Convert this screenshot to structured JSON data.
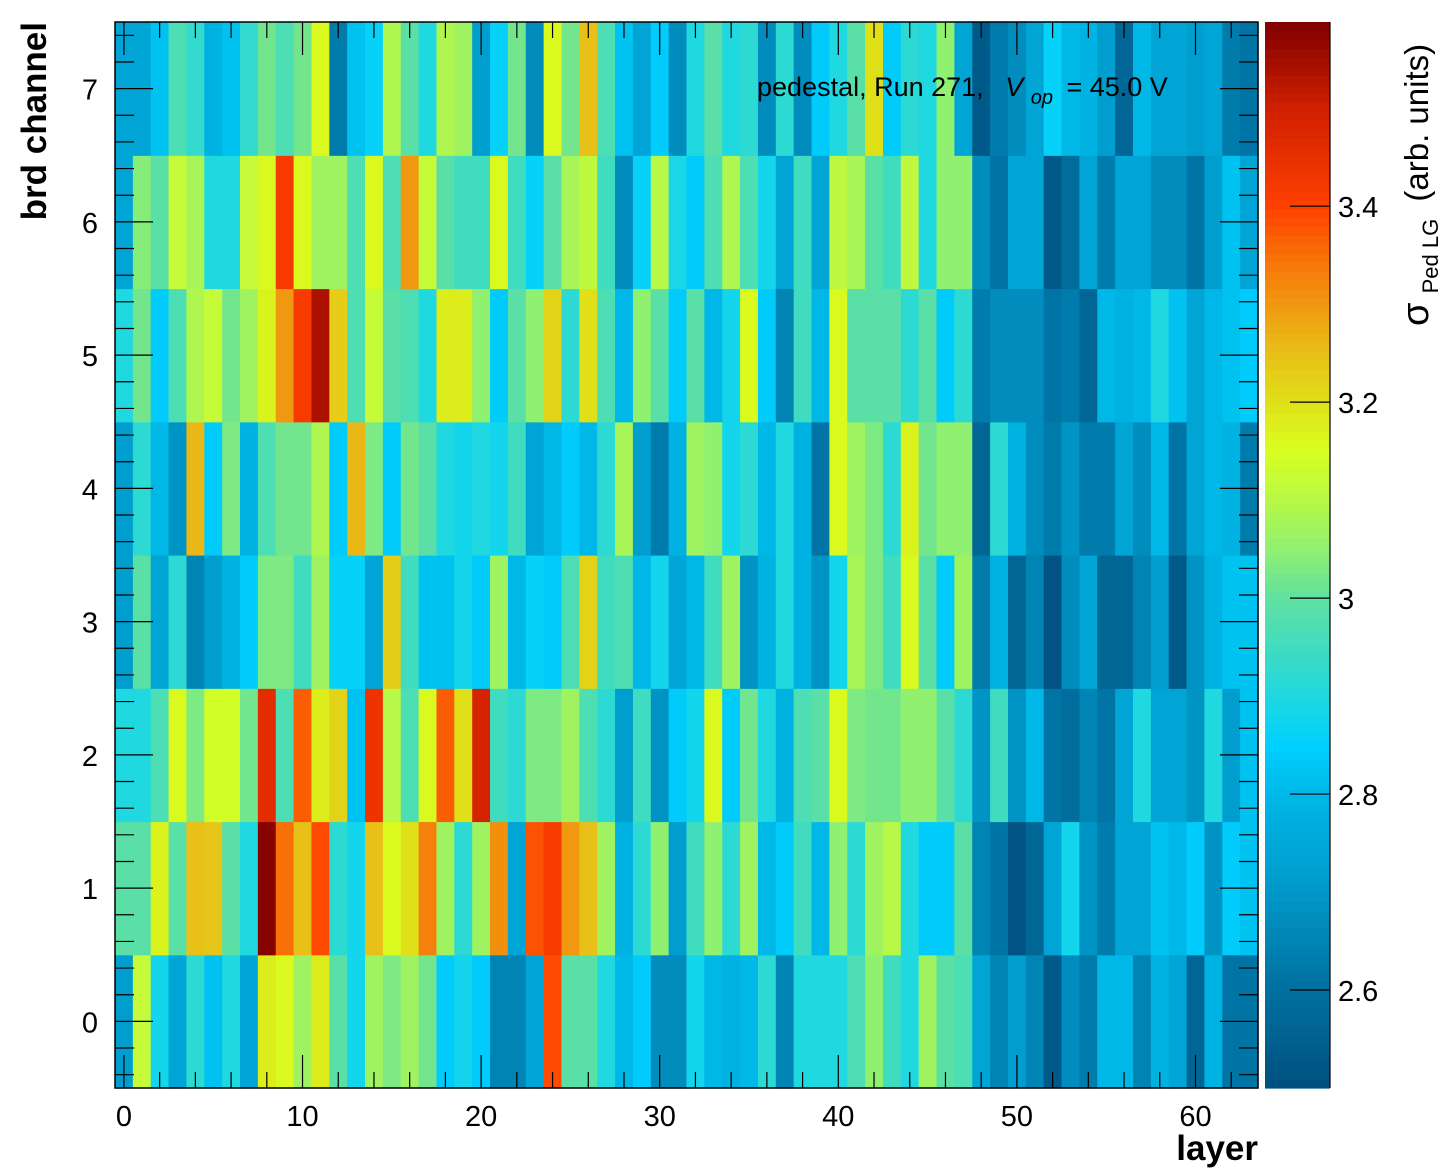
{
  "chart_data": {
    "type": "heatmap",
    "title": "",
    "annotation": {
      "prefix": "pedestal, Run 271,",
      "var_main": "V",
      "var_sub": "op",
      "suffix": "= 45.0 V"
    },
    "xlabel": "layer",
    "ylabel": "brd channel",
    "zlabel": {
      "symbol": "σ",
      "sub": "Ped LG",
      "rest": "(arb. units)"
    },
    "xlim": [
      -0.5,
      63.5
    ],
    "ylim": [
      -0.5,
      7.5
    ],
    "zlim": [
      2.5,
      3.588
    ],
    "x_ticks": [
      0,
      10,
      20,
      30,
      40,
      50,
      60
    ],
    "x_tick_labels": [
      "0",
      "10",
      "20",
      "30",
      "40",
      "50",
      "60"
    ],
    "y_ticks": [
      0,
      1,
      2,
      3,
      4,
      5,
      6,
      7
    ],
    "y_tick_labels": [
      "0",
      "1",
      "2",
      "3",
      "4",
      "5",
      "6",
      "7"
    ],
    "z_ticks": [
      2.6,
      2.8,
      3.0,
      3.2,
      3.4
    ],
    "z_tick_labels": [
      "2.6",
      "2.8",
      "3",
      "3.2",
      "3.4"
    ],
    "colormap": "rainbow (dark blue → cyan → green → yellow → red → dark red)",
    "grid": false,
    "legend": "colorbar-right",
    "x": "layer index 0..63",
    "y": "brd channel 0..7",
    "values": [
      [
        2.72,
        3.12,
        2.88,
        2.74,
        2.92,
        2.82,
        2.9,
        2.74,
        3.18,
        3.16,
        3.07,
        3.18,
        2.99,
        2.88,
        3.07,
        3.03,
        3.07,
        3.02,
        2.84,
        2.88,
        2.84,
        2.65,
        2.65,
        2.74,
        3.39,
        2.99,
        2.99,
        2.9,
        2.8,
        2.84,
        2.67,
        2.67,
        2.88,
        2.8,
        2.78,
        2.8,
        2.92,
        2.65,
        2.9,
        2.9,
        2.9,
        2.97,
        3.05,
        2.95,
        2.9,
        3.07,
        2.99,
        2.97,
        2.74,
        2.65,
        2.72,
        2.65,
        2.53,
        2.67,
        2.63,
        2.8,
        2.8,
        2.65,
        2.78,
        2.74,
        2.57,
        2.78,
        2.61,
        2.61
      ],
      [
        2.99,
        2.99,
        3.17,
        2.99,
        3.25,
        3.24,
        2.99,
        2.9,
        3.58,
        3.35,
        3.25,
        3.39,
        2.92,
        2.88,
        3.25,
        3.16,
        3.2,
        3.33,
        3.07,
        2.92,
        3.07,
        3.31,
        2.74,
        3.38,
        3.42,
        3.3,
        3.25,
        3.07,
        2.78,
        2.92,
        3.05,
        2.72,
        2.95,
        3.05,
        2.92,
        3.07,
        2.8,
        2.84,
        2.95,
        2.8,
        3.05,
        2.92,
        3.07,
        3.1,
        2.9,
        2.84,
        2.84,
        2.99,
        2.65,
        2.61,
        2.51,
        2.57,
        2.74,
        2.88,
        2.69,
        2.63,
        2.74,
        2.74,
        2.82,
        2.8,
        2.84,
        2.69,
        2.84,
        2.82
      ],
      [
        2.9,
        2.9,
        2.97,
        3.16,
        3.03,
        3.14,
        3.14,
        3.02,
        3.46,
        2.97,
        3.37,
        3.18,
        3.22,
        2.82,
        3.44,
        3.1,
        2.97,
        3.16,
        3.37,
        3.2,
        3.49,
        2.95,
        2.92,
        3.03,
        3.03,
        3.07,
        2.97,
        2.92,
        2.72,
        2.95,
        2.69,
        2.84,
        2.88,
        3.16,
        2.84,
        3.02,
        2.9,
        2.78,
        2.97,
        2.99,
        3.16,
        3.03,
        3.02,
        3.02,
        3.05,
        3.05,
        2.99,
        2.92,
        2.69,
        2.95,
        2.69,
        2.8,
        2.61,
        2.59,
        2.65,
        2.61,
        2.74,
        2.9,
        2.74,
        2.74,
        2.69,
        2.9,
        2.72,
        2.82
      ],
      [
        2.72,
        2.99,
        2.74,
        2.92,
        2.65,
        2.72,
        2.78,
        2.84,
        3.03,
        3.03,
        2.95,
        3.07,
        2.86,
        2.86,
        2.74,
        3.23,
        2.95,
        2.82,
        2.82,
        2.88,
        2.84,
        3.07,
        2.8,
        2.86,
        2.84,
        2.97,
        3.22,
        2.95,
        2.97,
        2.8,
        2.88,
        2.74,
        2.8,
        2.95,
        3.07,
        2.69,
        2.78,
        2.9,
        2.78,
        2.69,
        2.88,
        3.08,
        3.03,
        2.95,
        3.16,
        2.99,
        2.84,
        3.07,
        2.63,
        2.78,
        2.57,
        2.65,
        2.51,
        2.67,
        2.74,
        2.57,
        2.57,
        2.65,
        2.72,
        2.53,
        2.69,
        2.78,
        2.82,
        2.82
      ],
      [
        2.72,
        2.92,
        2.8,
        2.69,
        3.26,
        2.84,
        3.03,
        2.78,
        2.97,
        3.02,
        3.02,
        3.09,
        2.84,
        3.26,
        3.03,
        2.84,
        3.02,
        2.99,
        2.9,
        2.88,
        2.9,
        2.88,
        2.95,
        2.74,
        2.8,
        2.84,
        2.8,
        2.92,
        3.08,
        2.72,
        2.63,
        2.78,
        3.07,
        3.05,
        2.88,
        2.92,
        2.8,
        2.9,
        2.78,
        2.61,
        3.16,
        3.07,
        3.03,
        2.92,
        3.17,
        3.02,
        3.05,
        3.05,
        2.57,
        2.92,
        2.78,
        2.67,
        2.63,
        2.69,
        2.63,
        2.63,
        2.74,
        2.67,
        2.8,
        2.61,
        2.74,
        2.8,
        2.78,
        2.63
      ],
      [
        2.9,
        3.02,
        2.84,
        2.97,
        3.09,
        3.12,
        3.02,
        3.07,
        3.17,
        3.3,
        3.42,
        3.54,
        3.23,
        2.97,
        3.12,
        2.99,
        2.97,
        2.9,
        3.18,
        3.18,
        3.05,
        2.84,
        2.99,
        3.05,
        3.22,
        2.92,
        3.2,
        2.97,
        2.8,
        3.05,
        2.99,
        2.84,
        2.99,
        2.8,
        2.88,
        3.16,
        2.84,
        2.65,
        2.95,
        2.8,
        3.16,
        2.99,
        2.99,
        2.99,
        2.92,
        2.99,
        2.84,
        2.92,
        2.63,
        2.67,
        2.67,
        2.67,
        2.61,
        2.63,
        2.57,
        2.8,
        2.78,
        2.8,
        2.9,
        2.82,
        2.74,
        2.8,
        2.82,
        2.84
      ],
      [
        2.74,
        3.04,
        2.99,
        3.12,
        3.08,
        2.9,
        2.9,
        3.12,
        3.16,
        3.42,
        3.16,
        3.07,
        3.07,
        2.97,
        3.16,
        2.97,
        3.3,
        3.12,
        2.99,
        2.95,
        2.95,
        3.16,
        2.95,
        2.86,
        2.99,
        3.08,
        3.11,
        2.95,
        2.67,
        2.86,
        3.1,
        2.89,
        2.84,
        2.97,
        3.09,
        2.97,
        2.88,
        2.74,
        2.95,
        2.74,
        3.11,
        3.08,
        2.99,
        2.95,
        3.11,
        2.9,
        3.05,
        3.05,
        2.67,
        2.61,
        2.74,
        2.74,
        2.53,
        2.59,
        2.74,
        2.63,
        2.74,
        2.74,
        2.67,
        2.67,
        2.61,
        2.72,
        2.82,
        2.74
      ],
      [
        2.74,
        2.74,
        2.82,
        2.97,
        2.93,
        2.78,
        2.82,
        2.93,
        3.02,
        2.97,
        3.02,
        3.16,
        2.63,
        2.82,
        2.86,
        3.09,
        2.99,
        2.9,
        3.09,
        3.07,
        2.72,
        2.86,
        3.02,
        2.67,
        3.16,
        3.02,
        3.25,
        2.97,
        2.82,
        2.74,
        2.84,
        2.67,
        2.9,
        2.99,
        2.9,
        2.92,
        2.67,
        2.92,
        2.67,
        2.84,
        2.9,
        2.99,
        3.2,
        2.84,
        2.92,
        2.9,
        3.05,
        2.74,
        2.53,
        2.63,
        2.67,
        2.74,
        2.86,
        2.8,
        2.78,
        2.72,
        2.57,
        2.8,
        2.74,
        2.74,
        2.72,
        2.74,
        2.63,
        2.61
      ]
    ]
  }
}
